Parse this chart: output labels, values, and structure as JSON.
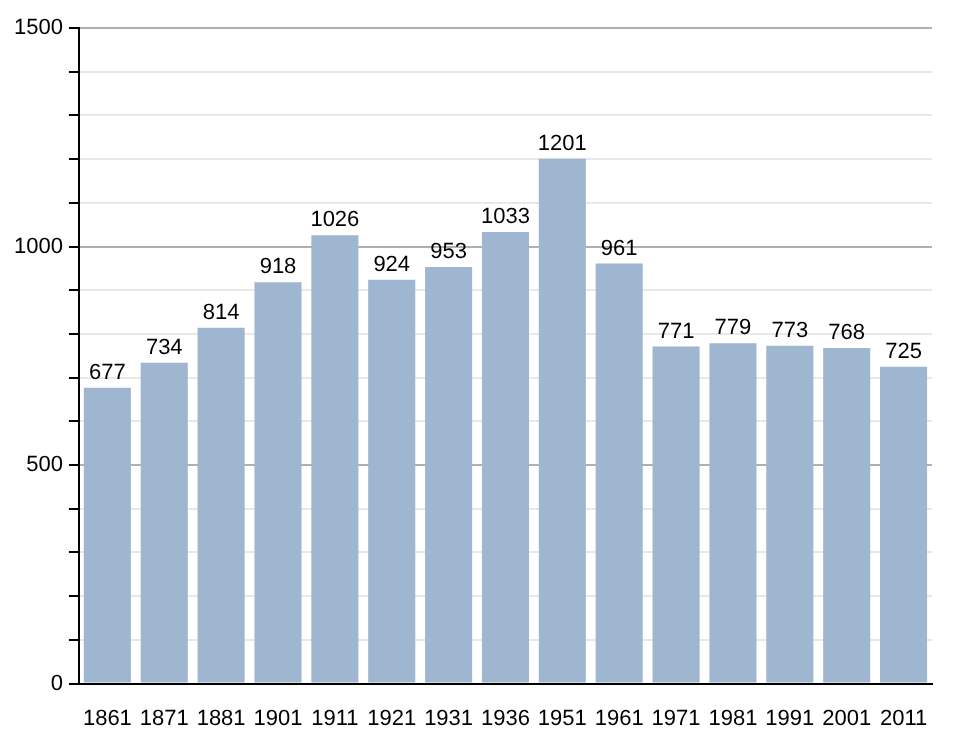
{
  "chart_data": {
    "type": "bar",
    "categories": [
      "1861",
      "1871",
      "1881",
      "1901",
      "1911",
      "1921",
      "1931",
      "1936",
      "1951",
      "1961",
      "1971",
      "1981",
      "1991",
      "2001",
      "2011"
    ],
    "values": [
      677,
      734,
      814,
      918,
      1026,
      924,
      953,
      1033,
      1201,
      961,
      771,
      779,
      773,
      768,
      725
    ],
    "color": "#9fb6d0",
    "ylim": [
      0,
      1500
    ],
    "yticks": [
      0,
      {
        "value": 100,
        "label": null
      },
      {
        "value": 200,
        "label": null
      },
      {
        "value": 300,
        "label": null
      },
      {
        "value": 400,
        "label": null
      },
      500,
      {
        "value": 600,
        "label": null
      },
      {
        "value": 700,
        "label": null
      },
      {
        "value": 800,
        "label": null
      },
      {
        "value": 900,
        "label": null
      },
      1000,
      {
        "value": 1100,
        "label": null
      },
      {
        "value": 1200,
        "label": null
      },
      {
        "value": 1300,
        "label": null
      },
      {
        "value": 1400,
        "label": null
      },
      1500
    ],
    "grid": "y",
    "data_labels": true,
    "legend": false
  }
}
